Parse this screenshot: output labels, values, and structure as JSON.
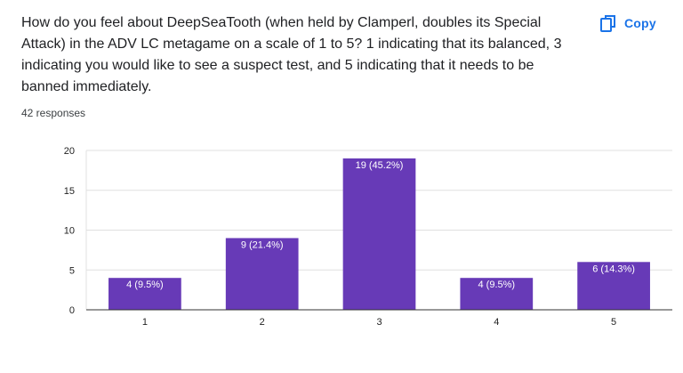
{
  "question": {
    "text": "How do you feel about DeepSeaTooth (when held by Clamperl, doubles its Special Attack) in the ADV LC metagame on a scale of 1 to 5? 1 indicating that its balanced, 3 indicating you would like to see a suspect test, and 5 indicating that it needs to be banned immediately."
  },
  "responses_count": "42 responses",
  "copy_button": {
    "label": "Copy",
    "icon": "copy-icon"
  },
  "colors": {
    "bar": "#673ab7",
    "accent": "#1a73e8",
    "grid": "#e0e0e0",
    "axis": "#333333"
  },
  "chart_data": {
    "type": "bar",
    "categories": [
      "1",
      "2",
      "3",
      "4",
      "5"
    ],
    "values": [
      4,
      9,
      19,
      4,
      6
    ],
    "data_labels": [
      "4 (9.5%)",
      "9 (21.4%)",
      "19 (45.2%)",
      "4 (9.5%)",
      "6 (14.3%)"
    ],
    "yticks": [
      0,
      5,
      10,
      15,
      20
    ],
    "ylim": [
      0,
      20
    ],
    "title": "",
    "xlabel": "",
    "ylabel": "",
    "grid": true,
    "legend": "none"
  }
}
